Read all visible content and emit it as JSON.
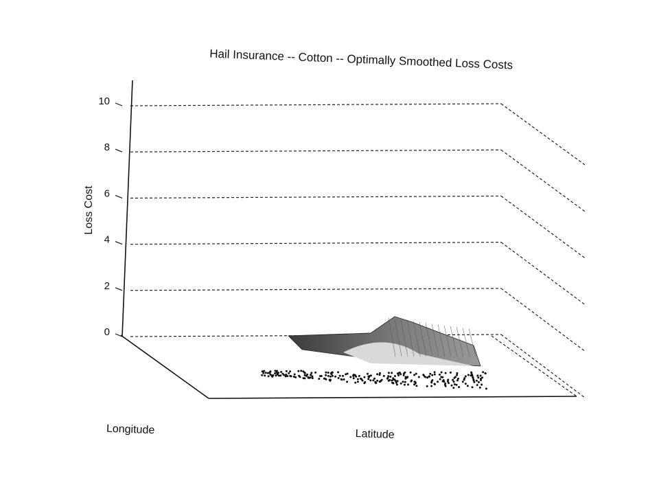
{
  "chart_data": {
    "type": "surface",
    "title": "Hail Insurance -- Cotton -- Optimally Smoothed Loss Costs",
    "zlabel": "Loss Cost",
    "xlabel": "Latitude",
    "ylabel": "Longitude",
    "zlim": [
      0,
      10
    ],
    "z_ticks": [
      "0",
      "2",
      "4",
      "6",
      "8",
      "10"
    ],
    "grid": true,
    "peak_loss_cost": 0.9,
    "typical_loss_cost": 0.3,
    "point_cloud": true,
    "colors": {
      "axes": "#111111",
      "grid": "#222222",
      "surface_dark": "#3a3a3a",
      "surface_light": "#d9d9d9",
      "points": "#111111"
    }
  }
}
